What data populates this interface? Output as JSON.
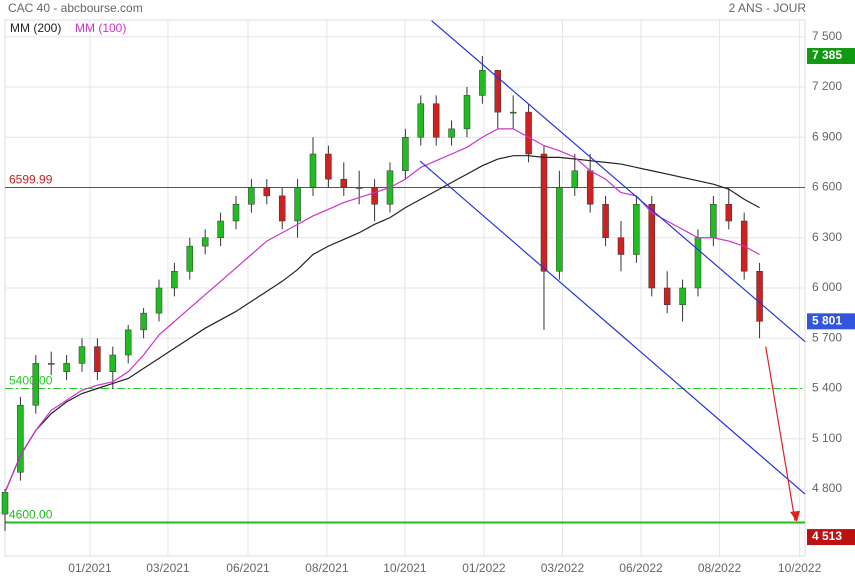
{
  "chart_data": {
    "type": "candlestick",
    "title": "CAC 40 - abcbourse.com",
    "subtitle": "2 ANS - JOUR",
    "xlim": [
      0,
      519.5
    ],
    "ylim": [
      4400,
      7600
    ],
    "grid": true,
    "xticks": [
      {
        "value": 55.2,
        "label": "01/2021"
      },
      {
        "value": 105.8,
        "label": "03/2021"
      },
      {
        "value": 157.8,
        "label": "06/2021"
      },
      {
        "value": 209,
        "label": "08/2021"
      },
      {
        "value": 259.7,
        "label": "10/2021"
      },
      {
        "value": 311,
        "label": "01/2022"
      },
      {
        "value": 362,
        "label": "03/2022"
      },
      {
        "value": 413,
        "label": "06/2022"
      },
      {
        "value": 464,
        "label": "08/2022"
      },
      {
        "value": 516,
        "label": "10/2022"
      }
    ],
    "yticks": [
      {
        "value": 7500,
        "label": "7 500"
      },
      {
        "value": 7200,
        "label": "7 200"
      },
      {
        "value": 6900,
        "label": "6 900"
      },
      {
        "value": 6600,
        "label": "6 600"
      },
      {
        "value": 6300,
        "label": "6 300"
      },
      {
        "value": 6000,
        "label": "6 000"
      },
      {
        "value": 5700,
        "label": "5 700"
      },
      {
        "value": 5400,
        "label": "5 400"
      },
      {
        "value": 5100,
        "label": "5 100"
      },
      {
        "value": 4800,
        "label": "4 800"
      }
    ],
    "x": [
      0,
      10,
      20,
      30,
      40,
      50,
      60,
      70,
      80,
      90,
      100,
      110,
      120,
      130,
      140,
      150,
      160,
      170,
      180,
      190,
      200,
      210,
      220,
      230,
      240,
      250,
      260,
      270,
      280,
      290,
      300,
      310,
      320,
      330,
      340,
      350,
      360,
      370,
      380,
      390,
      400,
      410,
      420,
      430,
      440,
      450,
      460,
      470,
      480,
      490
    ],
    "open": [
      4650,
      4900,
      5300,
      5550,
      5500,
      5550,
      5650,
      5500,
      5600,
      5750,
      5850,
      6000,
      6100,
      6250,
      6300,
      6400,
      6500,
      6600,
      6550,
      6400,
      6600,
      6800,
      6650,
      6600,
      6600,
      6500,
      6700,
      6900,
      7100,
      6900,
      6950,
      7150,
      7300,
      7050,
      7050,
      6800,
      6100,
      6600,
      6700,
      6500,
      6300,
      6200,
      6500,
      6000,
      5900,
      6000,
      6300,
      6500,
      6400,
      6100
    ],
    "high": [
      4800,
      5350,
      5600,
      5620,
      5600,
      5700,
      5700,
      5650,
      5780,
      5880,
      6050,
      6150,
      6300,
      6350,
      6450,
      6550,
      6650,
      6650,
      6600,
      6650,
      6900,
      6850,
      6750,
      6700,
      6650,
      6750,
      6950,
      7150,
      7150,
      7000,
      7200,
      7385,
      7300,
      7150,
      7100,
      6850,
      6700,
      6800,
      6800,
      6550,
      6400,
      6550,
      6550,
      6100,
      6050,
      6350,
      6550,
      6600,
      6450,
      6150
    ],
    "low": [
      4550,
      4850,
      5250,
      5480,
      5450,
      5500,
      5450,
      5400,
      5550,
      5700,
      5800,
      5950,
      6050,
      6200,
      6250,
      6350,
      6450,
      6500,
      6350,
      6300,
      6550,
      6600,
      6550,
      6500,
      6400,
      6450,
      6650,
      6850,
      6850,
      6850,
      6900,
      7100,
      6950,
      6950,
      6750,
      5750,
      6050,
      6550,
      6450,
      6250,
      6100,
      6150,
      5950,
      5850,
      5800,
      5950,
      6250,
      6350,
      6050,
      5700
    ],
    "close": [
      4780,
      5300,
      5550,
      5550,
      5550,
      5650,
      5500,
      5600,
      5750,
      5850,
      6000,
      6100,
      6250,
      6300,
      6400,
      6500,
      6600,
      6550,
      6400,
      6600,
      6800,
      6650,
      6600,
      6600,
      6500,
      6700,
      6900,
      7100,
      6900,
      6950,
      7150,
      7300,
      7050,
      7050,
      6800,
      6100,
      6600,
      6700,
      6500,
      6300,
      6200,
      6500,
      6000,
      5900,
      6000,
      6300,
      6500,
      6400,
      6100,
      5801
    ],
    "series": [
      {
        "name": "MM (200)",
        "color": "#222222",
        "values": [
          4780,
          5000,
          5150,
          5250,
          5320,
          5370,
          5400,
          5430,
          5460,
          5520,
          5580,
          5640,
          5700,
          5760,
          5810,
          5860,
          5920,
          5980,
          6040,
          6110,
          6200,
          6250,
          6290,
          6330,
          6380,
          6420,
          6480,
          6530,
          6580,
          6630,
          6680,
          6730,
          6770,
          6790,
          6790,
          6780,
          6780,
          6770,
          6760,
          6750,
          6740,
          6720,
          6700,
          6680,
          6660,
          6640,
          6620,
          6590,
          6530,
          6480
        ]
      },
      {
        "name": "MM (100)",
        "color": "#cc33cc",
        "values": [
          4780,
          5000,
          5150,
          5270,
          5330,
          5390,
          5420,
          5440,
          5500,
          5600,
          5720,
          5800,
          5880,
          5960,
          6040,
          6120,
          6200,
          6280,
          6330,
          6380,
          6430,
          6470,
          6510,
          6540,
          6570,
          6600,
          6650,
          6720,
          6760,
          6800,
          6840,
          6900,
          6950,
          6950,
          6900,
          6850,
          6820,
          6780,
          6700,
          6650,
          6570,
          6550,
          6450,
          6400,
          6350,
          6300,
          6300,
          6280,
          6250,
          6200
        ]
      }
    ],
    "hlines": [
      {
        "value": 6599.99,
        "label": "6599.99",
        "color": "#cc2222",
        "dash": "solid"
      },
      {
        "value": 5400.0,
        "label": "5400.00",
        "color": "#22cc22",
        "dash": "dashdot"
      },
      {
        "value": 4600.0,
        "label": "4600.00",
        "color": "#22bb22",
        "dash": "solid"
      }
    ],
    "trendlines": [
      {
        "x": [
          277,
          519.5
        ],
        "y": [
          7596,
          5680
        ],
        "color": "#2233dd"
      },
      {
        "x": [
          269.5,
          519.5
        ],
        "y": [
          6758,
          4770
        ],
        "color": "#2233dd"
      },
      {
        "x": [
          494,
          513
        ],
        "y": [
          5650,
          4610
        ],
        "color": "#dd2222"
      }
    ],
    "price_markers": [
      {
        "value": 7385,
        "label": "7 385",
        "color": "#119911"
      },
      {
        "value": 5801,
        "label": "5 801",
        "color": "#3355dd"
      },
      {
        "value": 4513,
        "label": "4 513",
        "color": "#bb1111"
      }
    ],
    "up_color": "#22bb22",
    "down_color": "#cc2222"
  }
}
